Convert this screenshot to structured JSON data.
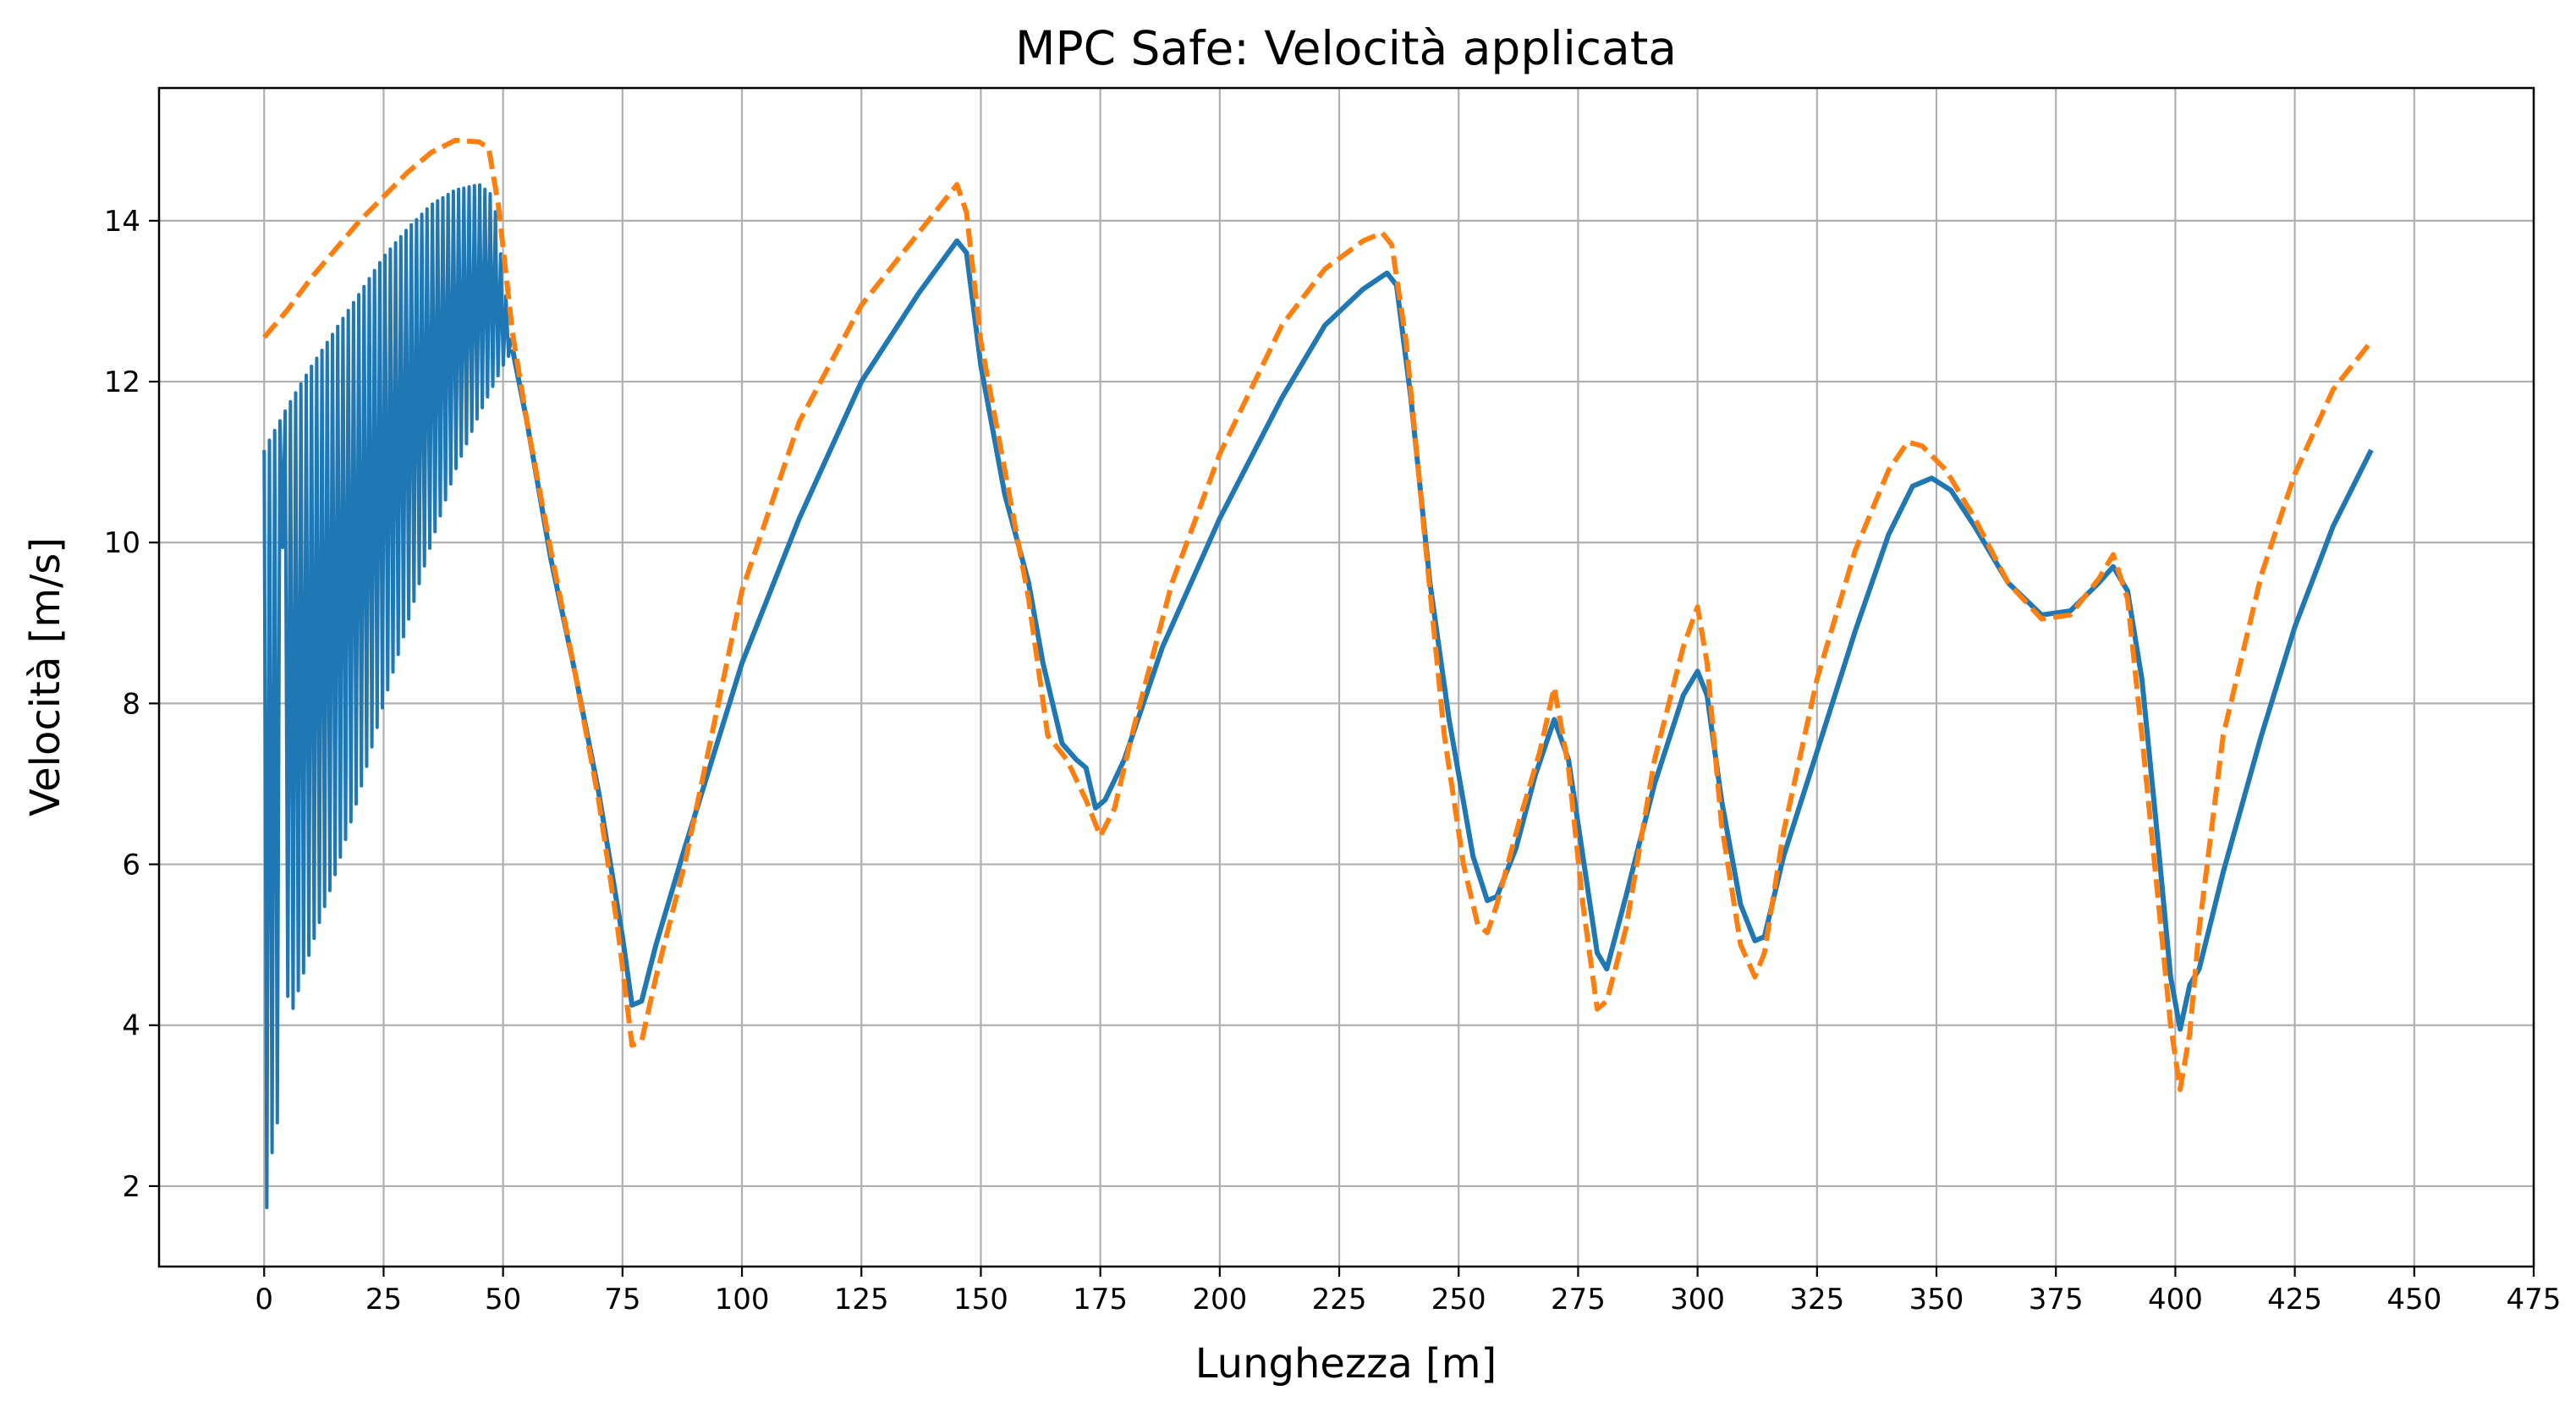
{
  "chart_data": {
    "type": "line",
    "title": "MPC Safe: Velocità applicata",
    "xlabel": "Lunghezza [m]",
    "ylabel": "Velocità [m/s]",
    "xlim": [
      -22,
      475
    ],
    "ylim": [
      1.0,
      15.65
    ],
    "xticks": [
      0,
      25,
      50,
      75,
      100,
      125,
      150,
      175,
      200,
      225,
      250,
      275,
      300,
      325,
      350,
      375,
      400,
      425,
      450,
      475
    ],
    "yticks": [
      2,
      4,
      6,
      8,
      10,
      12,
      14
    ],
    "grid": true,
    "colors": {
      "applied": "#1f77b4",
      "reference": "#ff7f0e"
    },
    "series": [
      {
        "key": "applied",
        "style": "solid",
        "oscillation": {
          "x_start": 0,
          "x_end": 52,
          "upper": [
            [
              0,
              11.15
            ],
            [
              5,
              11.7
            ],
            [
              10,
              12.2
            ],
            [
              15,
              12.65
            ],
            [
              20,
              13.1
            ],
            [
              25,
              13.55
            ],
            [
              30,
              13.9
            ],
            [
              35,
              14.2
            ],
            [
              40,
              14.38
            ],
            [
              45,
              14.45
            ],
            [
              48,
              14.3
            ],
            [
              52,
              12.4
            ]
          ],
          "lower": [
            [
              0,
              1.65
            ],
            [
              1,
              1.8
            ],
            [
              2,
              2.75
            ],
            [
              3,
              2.8
            ],
            [
              4,
              11.2
            ],
            [
              5,
              4.0
            ],
            [
              7,
              4.4
            ],
            [
              10,
              5.0
            ],
            [
              15,
              5.9
            ],
            [
              20,
              6.9
            ],
            [
              25,
              8.0
            ],
            [
              30,
              9.0
            ],
            [
              35,
              10.0
            ],
            [
              40,
              10.9
            ],
            [
              45,
              11.6
            ],
            [
              50,
              12.2
            ],
            [
              52,
              12.4
            ]
          ]
        },
        "points": [
          [
            52,
            12.4
          ],
          [
            55,
            11.5
          ],
          [
            60,
            9.8
          ],
          [
            65,
            8.4
          ],
          [
            70,
            6.9
          ],
          [
            75,
            5.1
          ],
          [
            77,
            4.25
          ],
          [
            79,
            4.3
          ],
          [
            82,
            5.0
          ],
          [
            88,
            6.2
          ],
          [
            100,
            8.5
          ],
          [
            112,
            10.3
          ],
          [
            125,
            12.0
          ],
          [
            137,
            13.1
          ],
          [
            145,
            13.75
          ],
          [
            147,
            13.6
          ],
          [
            150,
            12.2
          ],
          [
            155,
            10.6
          ],
          [
            160,
            9.5
          ],
          [
            163,
            8.5
          ],
          [
            167,
            7.5
          ],
          [
            170,
            7.3
          ],
          [
            172,
            7.2
          ],
          [
            174,
            6.7
          ],
          [
            176,
            6.8
          ],
          [
            180,
            7.3
          ],
          [
            188,
            8.7
          ],
          [
            200,
            10.3
          ],
          [
            213,
            11.8
          ],
          [
            222,
            12.7
          ],
          [
            230,
            13.15
          ],
          [
            235,
            13.35
          ],
          [
            237,
            13.2
          ],
          [
            240,
            11.8
          ],
          [
            244,
            9.5
          ],
          [
            248,
            7.8
          ],
          [
            253,
            6.1
          ],
          [
            256,
            5.55
          ],
          [
            258,
            5.6
          ],
          [
            262,
            6.2
          ],
          [
            266,
            7.1
          ],
          [
            270,
            7.8
          ],
          [
            273,
            7.3
          ],
          [
            276,
            6.1
          ],
          [
            279,
            4.9
          ],
          [
            281,
            4.7
          ],
          [
            285,
            5.6
          ],
          [
            291,
            7.0
          ],
          [
            297,
            8.1
          ],
          [
            300,
            8.4
          ],
          [
            302,
            8.1
          ],
          [
            305,
            6.8
          ],
          [
            309,
            5.5
          ],
          [
            312,
            5.05
          ],
          [
            314,
            5.1
          ],
          [
            318,
            6.1
          ],
          [
            325,
            7.4
          ],
          [
            333,
            8.9
          ],
          [
            340,
            10.1
          ],
          [
            345,
            10.7
          ],
          [
            349,
            10.8
          ],
          [
            353,
            10.65
          ],
          [
            358,
            10.2
          ],
          [
            365,
            9.5
          ],
          [
            372,
            9.1
          ],
          [
            378,
            9.15
          ],
          [
            384,
            9.5
          ],
          [
            387,
            9.7
          ],
          [
            390,
            9.4
          ],
          [
            393,
            8.3
          ],
          [
            396,
            6.5
          ],
          [
            399,
            4.6
          ],
          [
            401,
            3.95
          ],
          [
            403,
            4.5
          ],
          [
            405,
            4.7
          ],
          [
            410,
            5.9
          ],
          [
            418,
            7.6
          ],
          [
            425,
            8.95
          ],
          [
            433,
            10.2
          ],
          [
            441,
            11.15
          ]
        ]
      },
      {
        "key": "reference",
        "style": "dashed",
        "points": [
          [
            0,
            12.55
          ],
          [
            5,
            12.9
          ],
          [
            10,
            13.3
          ],
          [
            15,
            13.65
          ],
          [
            20,
            14.0
          ],
          [
            25,
            14.3
          ],
          [
            30,
            14.6
          ],
          [
            35,
            14.85
          ],
          [
            40,
            15.0
          ],
          [
            45,
            14.98
          ],
          [
            47,
            14.9
          ],
          [
            49,
            14.2
          ],
          [
            52,
            12.6
          ],
          [
            55,
            11.5
          ],
          [
            60,
            9.9
          ],
          [
            65,
            8.4
          ],
          [
            70,
            6.8
          ],
          [
            74,
            5.2
          ],
          [
            77,
            3.75
          ],
          [
            79,
            3.8
          ],
          [
            82,
            4.6
          ],
          [
            88,
            6.0
          ],
          [
            100,
            9.4
          ],
          [
            112,
            11.5
          ],
          [
            125,
            12.95
          ],
          [
            137,
            13.85
          ],
          [
            145,
            14.45
          ],
          [
            147,
            14.1
          ],
          [
            150,
            12.5
          ],
          [
            155,
            10.9
          ],
          [
            160,
            9.3
          ],
          [
            164,
            7.6
          ],
          [
            168,
            7.3
          ],
          [
            172,
            6.8
          ],
          [
            175,
            6.35
          ],
          [
            178,
            6.7
          ],
          [
            182,
            7.7
          ],
          [
            190,
            9.5
          ],
          [
            200,
            11.1
          ],
          [
            213,
            12.7
          ],
          [
            222,
            13.4
          ],
          [
            230,
            13.75
          ],
          [
            234,
            13.85
          ],
          [
            236,
            13.7
          ],
          [
            239,
            12.5
          ],
          [
            243,
            10.0
          ],
          [
            247,
            7.6
          ],
          [
            251,
            6.0
          ],
          [
            254,
            5.25
          ],
          [
            256,
            5.15
          ],
          [
            258,
            5.5
          ],
          [
            263,
            6.6
          ],
          [
            267,
            7.4
          ],
          [
            270,
            8.2
          ],
          [
            273,
            7.2
          ],
          [
            276,
            5.5
          ],
          [
            279,
            4.2
          ],
          [
            281,
            4.3
          ],
          [
            285,
            5.2
          ],
          [
            291,
            7.3
          ],
          [
            297,
            8.7
          ],
          [
            300,
            9.2
          ],
          [
            302,
            8.5
          ],
          [
            305,
            6.5
          ],
          [
            309,
            5.0
          ],
          [
            312,
            4.6
          ],
          [
            314,
            4.9
          ],
          [
            318,
            6.4
          ],
          [
            325,
            8.3
          ],
          [
            333,
            9.9
          ],
          [
            340,
            10.9
          ],
          [
            344,
            11.25
          ],
          [
            347,
            11.2
          ],
          [
            352,
            10.9
          ],
          [
            358,
            10.3
          ],
          [
            365,
            9.5
          ],
          [
            372,
            9.05
          ],
          [
            378,
            9.1
          ],
          [
            384,
            9.55
          ],
          [
            387,
            9.85
          ],
          [
            390,
            9.3
          ],
          [
            393,
            7.6
          ],
          [
            396,
            5.8
          ],
          [
            399,
            4.0
          ],
          [
            401,
            3.2
          ],
          [
            403,
            3.9
          ],
          [
            405,
            5.2
          ],
          [
            410,
            7.6
          ],
          [
            418,
            9.6
          ],
          [
            425,
            10.85
          ],
          [
            433,
            11.9
          ],
          [
            441,
            12.5
          ]
        ]
      }
    ]
  }
}
